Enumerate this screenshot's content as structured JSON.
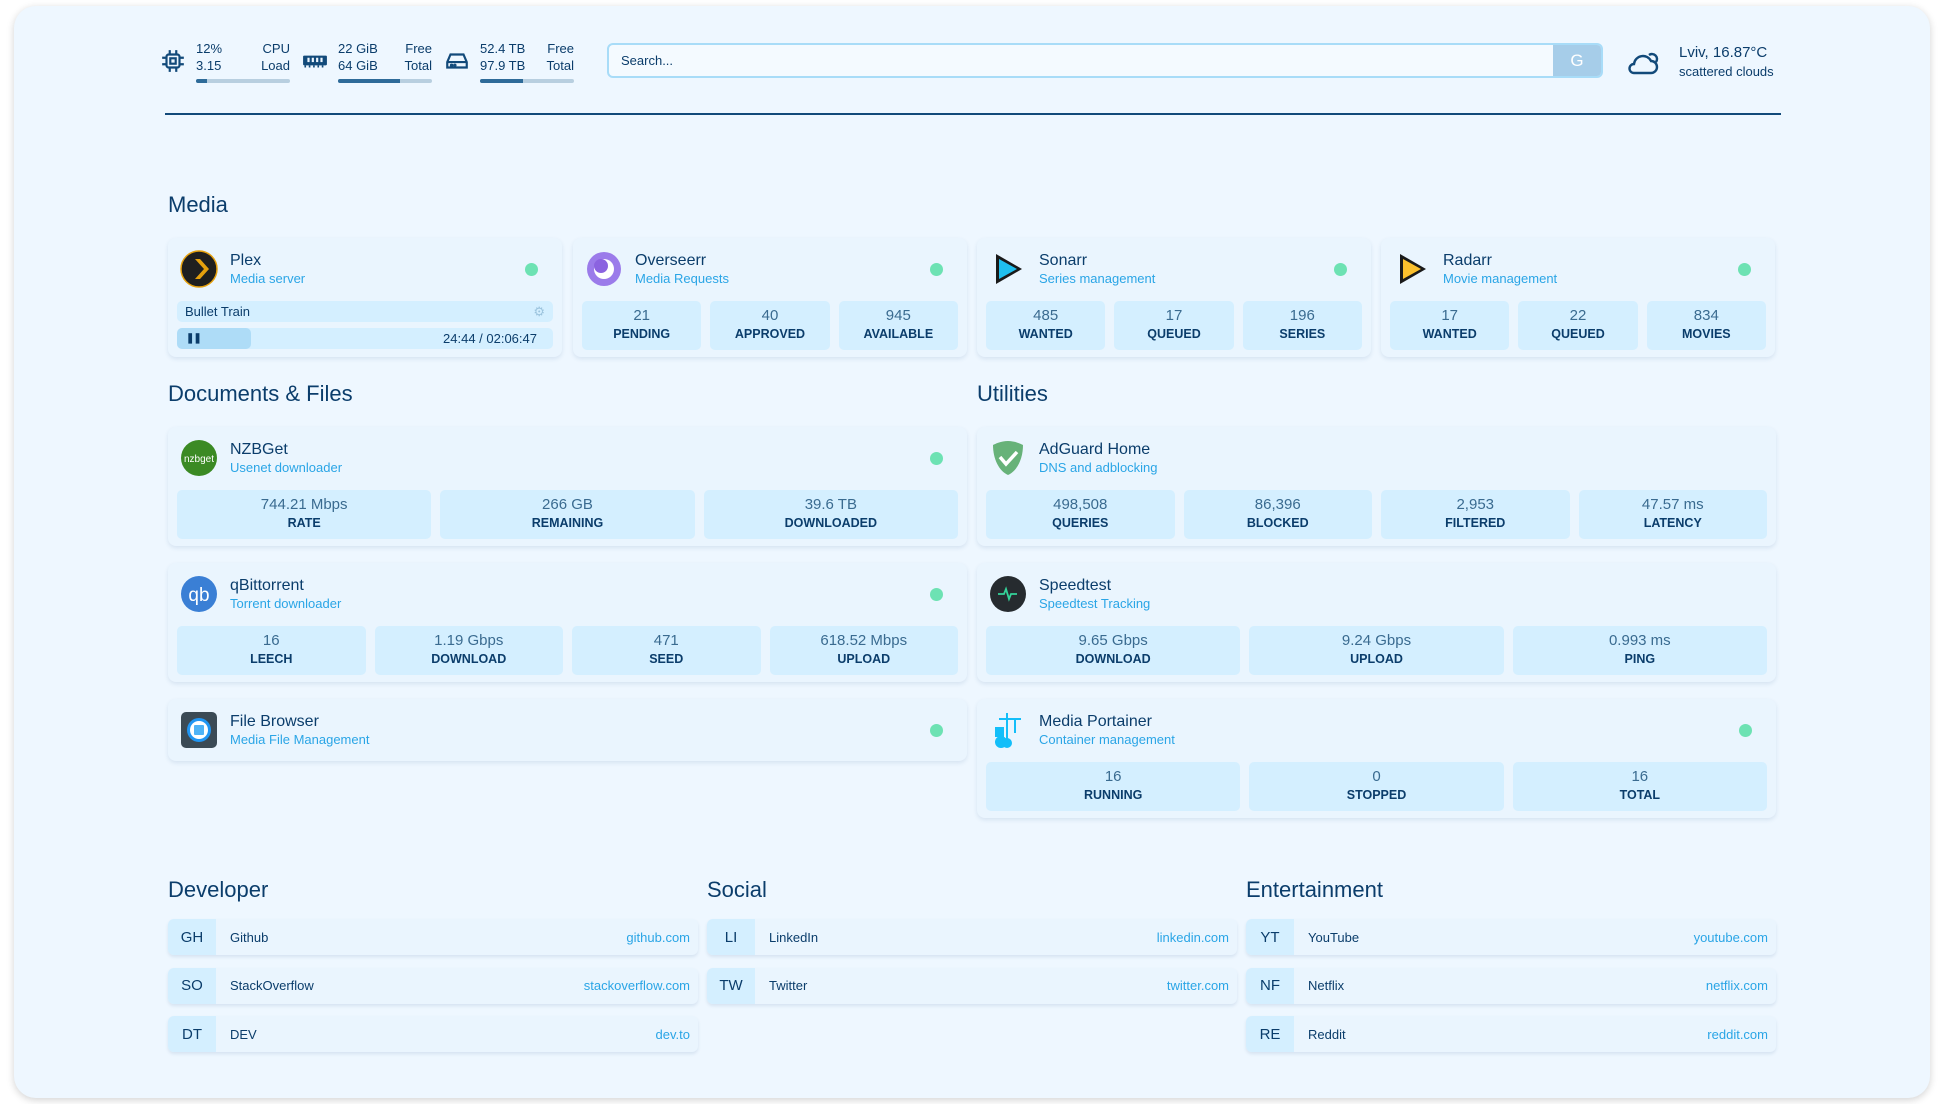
{
  "header": {
    "cpu": {
      "icon": "cpu-icon",
      "value1": "12%",
      "label1": "CPU",
      "value2": "3.15",
      "label2": "Load",
      "usage_percent": 12
    },
    "memory": {
      "icon": "memory-icon",
      "value1": "22 GiB",
      "label1": "Free",
      "value2": "64 GiB",
      "label2": "Total",
      "usage_percent": 66
    },
    "disk": {
      "icon": "disk-icon",
      "value1": "52.4 TB",
      "label1": "Free",
      "value2": "97.9 TB",
      "label2": "Total",
      "usage_percent": 46
    },
    "search": {
      "placeholder": "Search...",
      "button_label": "G"
    },
    "weather": {
      "icon": "cloud-sun-icon",
      "location_temp": "Lviv, 16.87°C",
      "condition": "scattered clouds"
    }
  },
  "colors": {
    "accent": "#2aa5e6",
    "text": "#0b3d6b",
    "status_online": "#6de2b3",
    "stat_bg": "#d4efff"
  },
  "sections": {
    "media": "Media",
    "documents": "Documents & Files",
    "utilities": "Utilities",
    "developer": "Developer",
    "social": "Social",
    "entertainment": "Entertainment"
  },
  "services": {
    "plex": {
      "name": "Plex",
      "desc": "Media server",
      "icon": "plex-icon",
      "now_playing": {
        "title": "Bullet Train",
        "time": "24:44 / 02:06:47",
        "progress_percent": 19.6
      }
    },
    "overseerr": {
      "name": "Overseerr",
      "desc": "Media Requests",
      "icon": "overseerr-icon",
      "stats": [
        {
          "v": "21",
          "l": "PENDING"
        },
        {
          "v": "40",
          "l": "APPROVED"
        },
        {
          "v": "945",
          "l": "AVAILABLE"
        }
      ]
    },
    "sonarr": {
      "name": "Sonarr",
      "desc": "Series management",
      "icon": "sonarr-icon",
      "stats": [
        {
          "v": "485",
          "l": "WANTED"
        },
        {
          "v": "17",
          "l": "QUEUED"
        },
        {
          "v": "196",
          "l": "SERIES"
        }
      ]
    },
    "radarr": {
      "name": "Radarr",
      "desc": "Movie management",
      "icon": "radarr-icon",
      "stats": [
        {
          "v": "17",
          "l": "WANTED"
        },
        {
          "v": "22",
          "l": "QUEUED"
        },
        {
          "v": "834",
          "l": "MOVIES"
        }
      ]
    },
    "nzbget": {
      "name": "NZBGet",
      "desc": "Usenet downloader",
      "icon": "nzbget-icon",
      "stats": [
        {
          "v": "744.21 Mbps",
          "l": "RATE"
        },
        {
          "v": "266 GB",
          "l": "REMAINING"
        },
        {
          "v": "39.6 TB",
          "l": "DOWNLOADED"
        }
      ]
    },
    "qbittorrent": {
      "name": "qBittorrent",
      "desc": "Torrent downloader",
      "icon": "qbittorrent-icon",
      "stats": [
        {
          "v": "16",
          "l": "LEECH"
        },
        {
          "v": "1.19 Gbps",
          "l": "DOWNLOAD"
        },
        {
          "v": "471",
          "l": "SEED"
        },
        {
          "v": "618.52 Mbps",
          "l": "UPLOAD"
        }
      ]
    },
    "filebrowser": {
      "name": "File Browser",
      "desc": "Media File Management",
      "icon": "filebrowser-icon"
    },
    "adguard": {
      "name": "AdGuard Home",
      "desc": "DNS and adblocking",
      "icon": "adguard-icon",
      "stats": [
        {
          "v": "498,508",
          "l": "QUERIES"
        },
        {
          "v": "86,396",
          "l": "BLOCKED"
        },
        {
          "v": "2,953",
          "l": "FILTERED"
        },
        {
          "v": "47.57 ms",
          "l": "LATENCY"
        }
      ]
    },
    "speedtest": {
      "name": "Speedtest",
      "desc": "Speedtest Tracking",
      "icon": "speedtest-icon",
      "stats": [
        {
          "v": "9.65 Gbps",
          "l": "DOWNLOAD"
        },
        {
          "v": "9.24 Gbps",
          "l": "UPLOAD"
        },
        {
          "v": "0.993 ms",
          "l": "PING"
        }
      ]
    },
    "portainer": {
      "name": "Media Portainer",
      "desc": "Container management",
      "icon": "portainer-icon",
      "stats": [
        {
          "v": "16",
          "l": "RUNNING"
        },
        {
          "v": "0",
          "l": "STOPPED"
        },
        {
          "v": "16",
          "l": "TOTAL"
        }
      ]
    }
  },
  "bookmarks": {
    "developer": [
      {
        "abbr": "GH",
        "name": "Github",
        "url": "github.com"
      },
      {
        "abbr": "SO",
        "name": "StackOverflow",
        "url": "stackoverflow.com"
      },
      {
        "abbr": "DT",
        "name": "DEV",
        "url": "dev.to"
      }
    ],
    "social": [
      {
        "abbr": "LI",
        "name": "LinkedIn",
        "url": "linkedin.com"
      },
      {
        "abbr": "TW",
        "name": "Twitter",
        "url": "twitter.com"
      }
    ],
    "entertainment": [
      {
        "abbr": "YT",
        "name": "YouTube",
        "url": "youtube.com"
      },
      {
        "abbr": "NF",
        "name": "Netflix",
        "url": "netflix.com"
      },
      {
        "abbr": "RE",
        "name": "Reddit",
        "url": "reddit.com"
      }
    ]
  }
}
